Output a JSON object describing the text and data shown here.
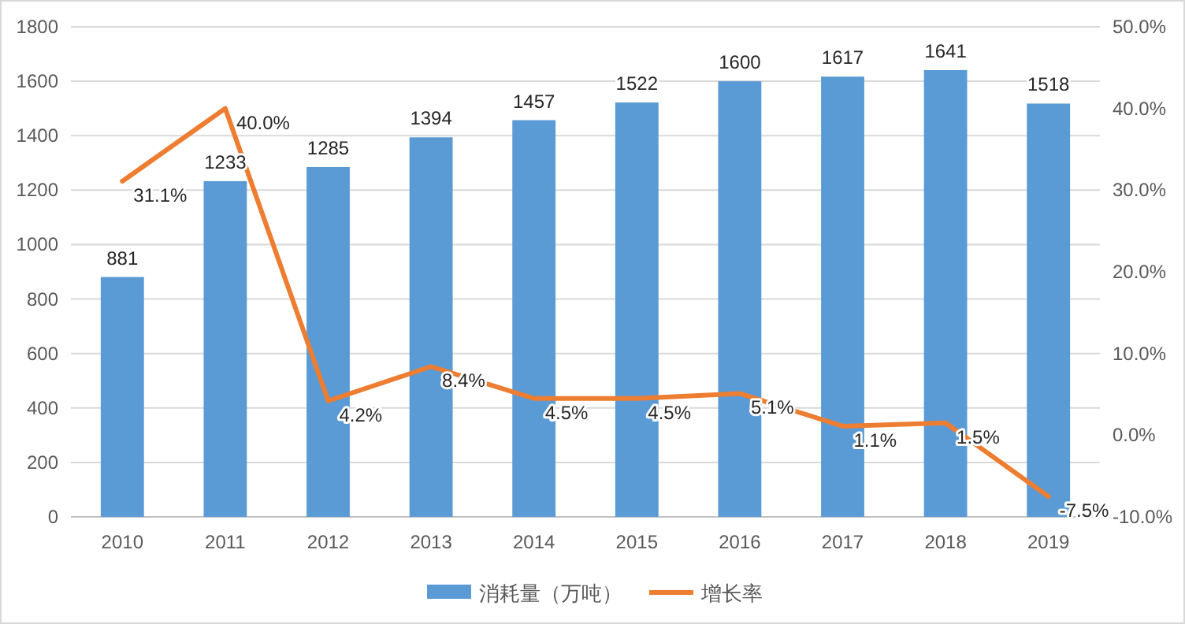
{
  "chart_data": {
    "type": "bar",
    "categories": [
      "2010",
      "2011",
      "2012",
      "2013",
      "2014",
      "2015",
      "2016",
      "2017",
      "2018",
      "2019"
    ],
    "series": [
      {
        "name": "消耗量（万吨）",
        "color": "#5b9bd5",
        "values": [
          881,
          1233,
          1285,
          1394,
          1457,
          1522,
          1600,
          1617,
          1641,
          1518
        ],
        "value_labels": [
          "881",
          "1233",
          "1285",
          "1394",
          "1457",
          "1522",
          "1600",
          "1617",
          "1641",
          "1518"
        ]
      },
      {
        "name": "增长率",
        "type": "line",
        "axis": "y2",
        "color": "#ed7d31",
        "values": [
          31.1,
          40.0,
          4.2,
          8.4,
          4.5,
          4.5,
          5.1,
          1.1,
          1.5,
          -7.5
        ],
        "value_labels": [
          "31.1%",
          "40.0%",
          "4.2%",
          "8.4%",
          "4.5%",
          "4.5%",
          "5.1%",
          "1.1%",
          "1.5%",
          "-7.5%"
        ]
      }
    ],
    "ylim": [
      0,
      1800
    ],
    "yticks": [
      0,
      200,
      400,
      600,
      800,
      1000,
      1200,
      1400,
      1600,
      1800
    ],
    "y2lim": [
      -10,
      50
    ],
    "y2ticks": [
      {
        "value": -10,
        "label": "-10.0%"
      },
      {
        "value": 0,
        "label": "0.0%"
      },
      {
        "value": 10,
        "label": "10.0%"
      },
      {
        "value": 20,
        "label": "20.0%"
      },
      {
        "value": 30,
        "label": "30.0%"
      },
      {
        "value": 40,
        "label": "40.0%"
      },
      {
        "value": 50,
        "label": "50.0%"
      }
    ],
    "grid": "y",
    "legend": "bottom",
    "marker": "none",
    "line_style": "solid"
  }
}
